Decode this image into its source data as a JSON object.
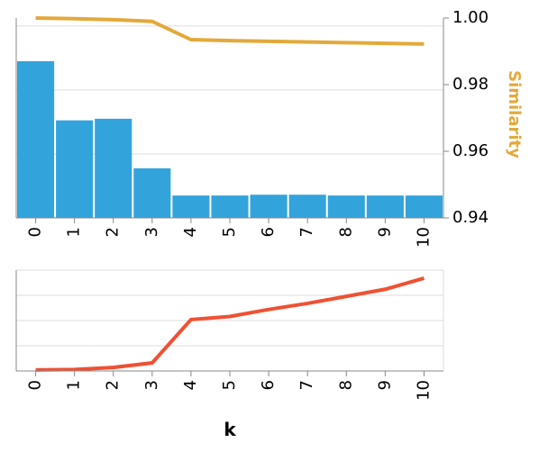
{
  "chart_data": [
    {
      "type": "bar",
      "categories": [
        "0",
        "1",
        "2",
        "3",
        "4",
        "5",
        "6",
        "7",
        "8",
        "9",
        "10"
      ],
      "series": [
        {
          "values": [
            9.8,
            6.1,
            6.2,
            3.1,
            1.4,
            1.4,
            1.45,
            1.45,
            1.4,
            1.4,
            1.4
          ],
          "color": "#33a3dc"
        },
        {
          "name": "Similarity",
          "type": "line",
          "axis": "right",
          "values": [
            1.0,
            0.9998,
            0.9995,
            0.999,
            0.9935,
            0.9932,
            0.993,
            0.9928,
            0.9926,
            0.9924,
            0.9922
          ],
          "color": "#e3a93a"
        }
      ],
      "ylim": [
        0,
        12.5
      ],
      "ylabel": "",
      "y2label": "Similarity",
      "y2lim": [
        0.94,
        1.0
      ],
      "y2ticks": [
        "0.94",
        "0.96",
        "0.98",
        "1.00"
      ],
      "xticks": [
        "0",
        "1",
        "2",
        "3",
        "4",
        "5",
        "6",
        "7",
        "8",
        "9",
        "10"
      ]
    },
    {
      "type": "line",
      "x": [
        "0",
        "1",
        "2",
        "3",
        "4",
        "5",
        "6",
        "7",
        "8",
        "9",
        "10"
      ],
      "series": [
        {
          "values": [
            0.1,
            0.15,
            0.35,
            0.8,
            5.1,
            5.4,
            6.1,
            6.7,
            7.4,
            8.1,
            9.2
          ],
          "color": "#f05033"
        }
      ],
      "ylim": [
        0,
        10
      ],
      "xlabel": "k",
      "xticks": [
        "0",
        "1",
        "2",
        "3",
        "4",
        "5",
        "6",
        "7",
        "8",
        "9",
        "10"
      ],
      "grid": true
    }
  ]
}
